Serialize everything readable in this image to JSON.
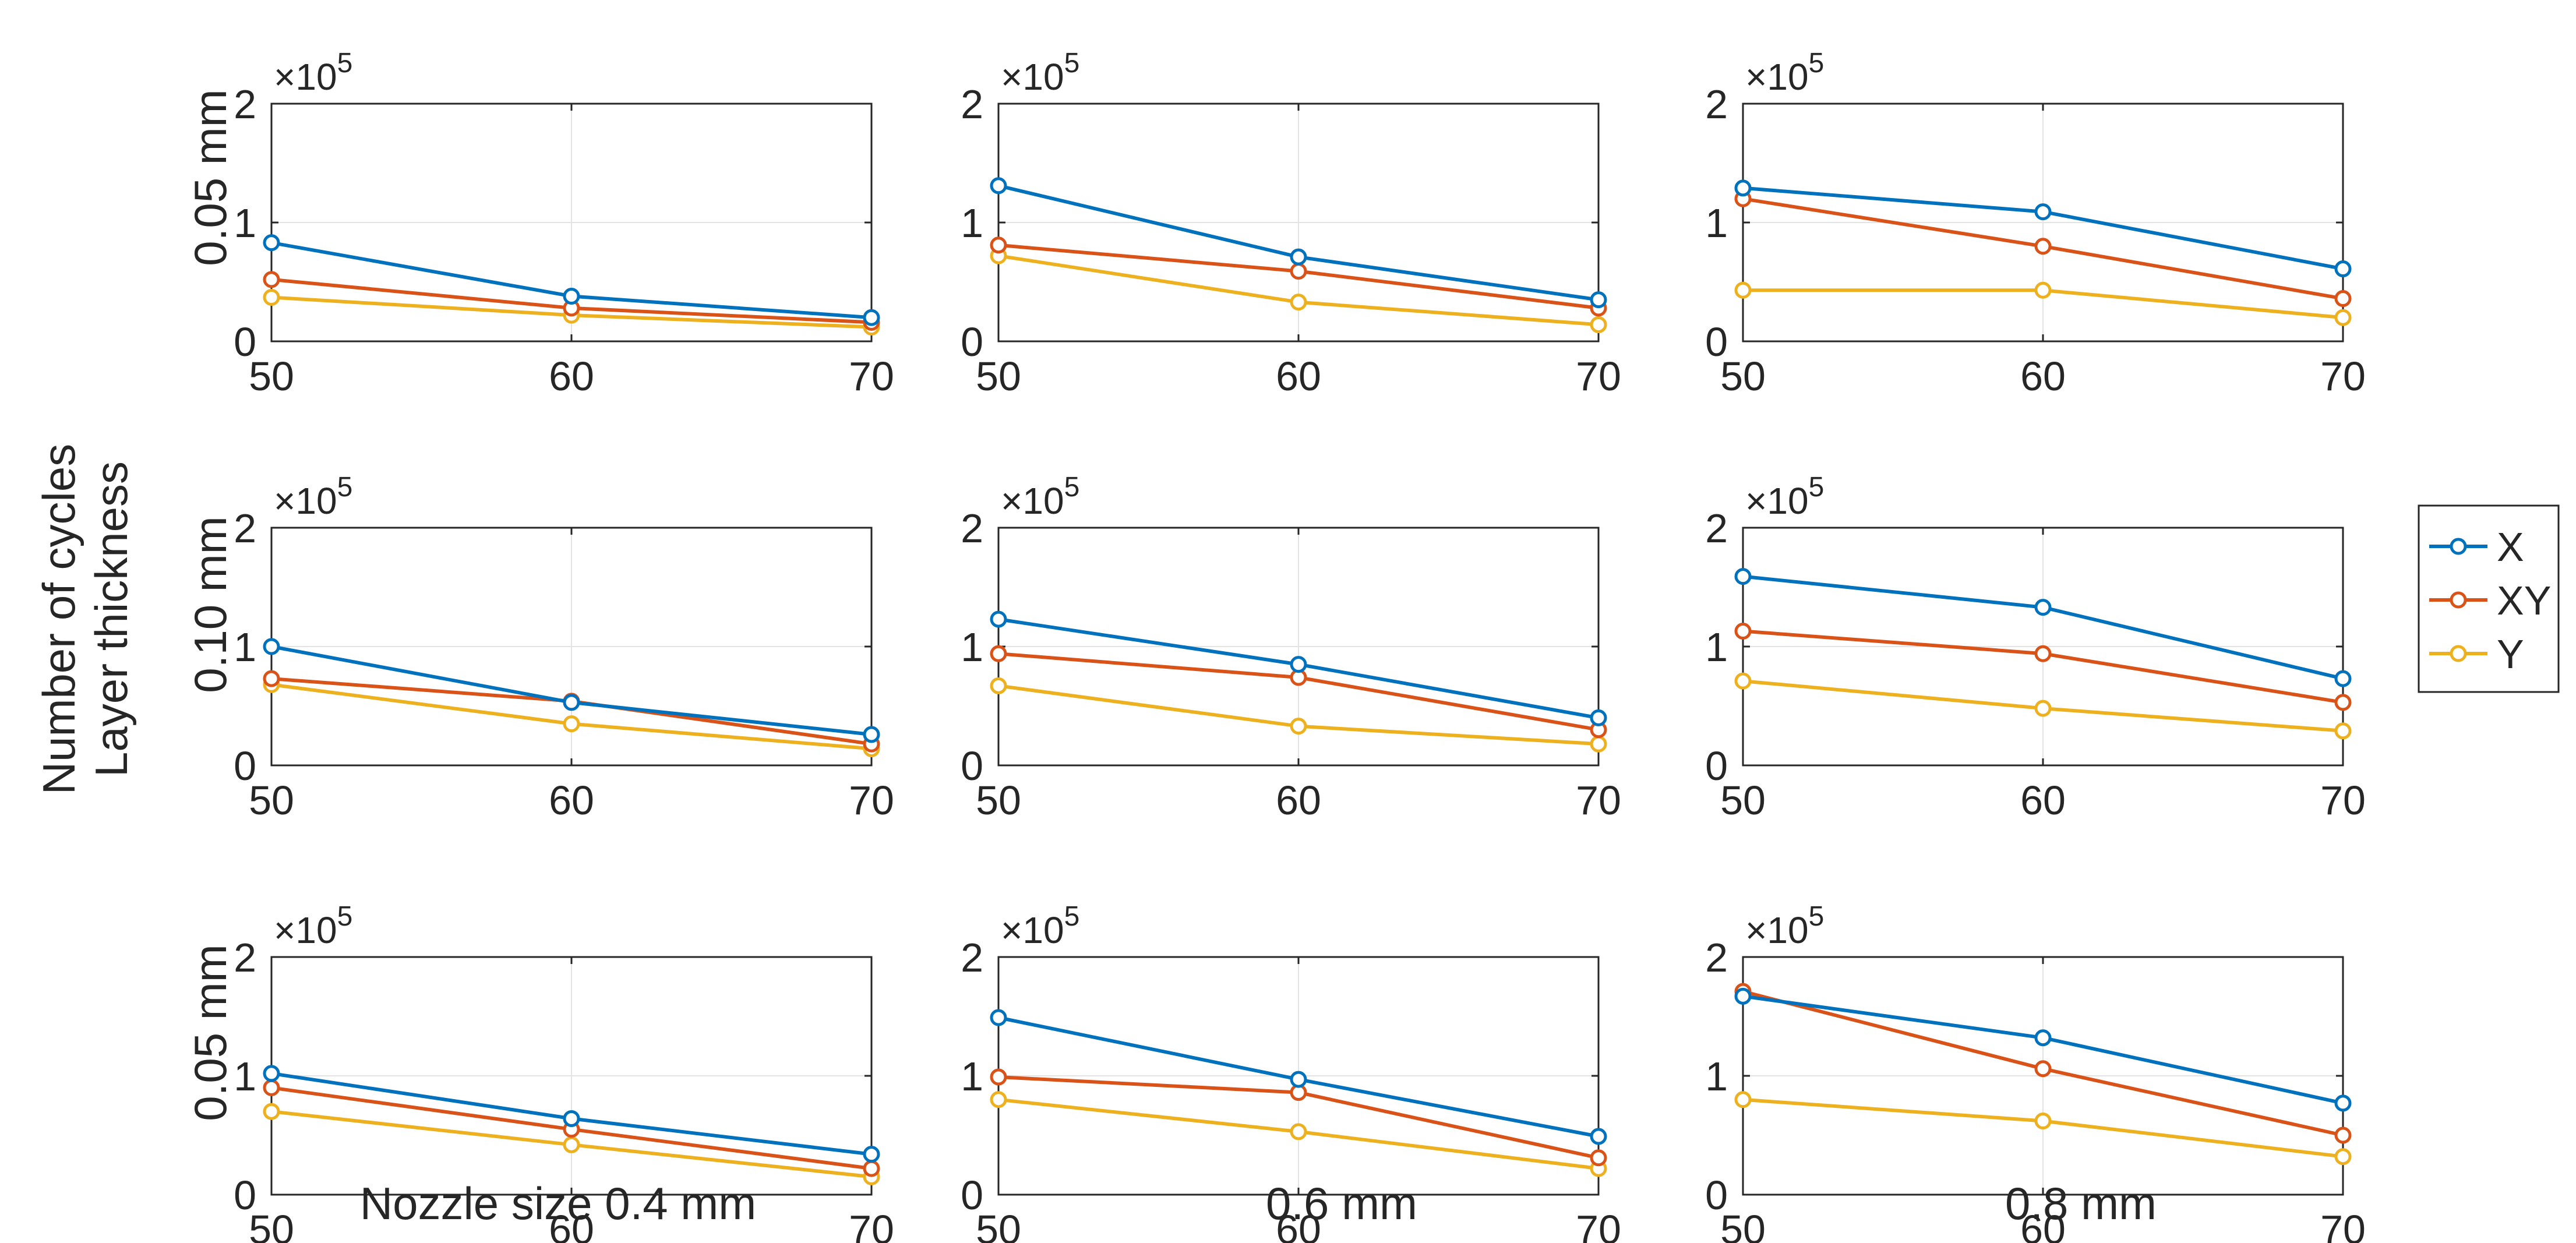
{
  "figure": {
    "ylabel_line1": "Number of cycles",
    "ylabel_line2": "Layer thickness",
    "row_labels": [
      "0.05 mm",
      "0.10 mm",
      "0.05 mm"
    ],
    "col_labels": [
      "Nozzle size 0.4 mm",
      "0.6 mm",
      "0.8 mm"
    ],
    "exponent_base": "×10",
    "exponent_power": "5",
    "legend": [
      {
        "name": "X",
        "color": "#0072BD"
      },
      {
        "name": "XY",
        "color": "#D95319"
      },
      {
        "name": "Y",
        "color": "#EDB120"
      }
    ]
  },
  "chart_data": [
    {
      "type": "line",
      "panel": "row1-col1",
      "row_label": "0.05 mm",
      "col_label": "Nozzle size 0.4 mm",
      "x": [
        50,
        60,
        70
      ],
      "xticks": [
        "50",
        "60",
        "70"
      ],
      "yticks": [
        "0",
        "1",
        "2"
      ],
      "xlim": [
        50,
        70
      ],
      "ylim": [
        0,
        2
      ],
      "y_scale": "x10^5",
      "series": [
        {
          "name": "X",
          "values": [
            0.83,
            0.38,
            0.2
          ]
        },
        {
          "name": "XY",
          "values": [
            0.52,
            0.28,
            0.16
          ]
        },
        {
          "name": "Y",
          "values": [
            0.37,
            0.22,
            0.12
          ]
        }
      ]
    },
    {
      "type": "line",
      "panel": "row1-col2",
      "row_label": "0.05 mm",
      "col_label": "0.6 mm",
      "x": [
        50,
        60,
        70
      ],
      "xticks": [
        "50",
        "60",
        "70"
      ],
      "yticks": [
        "0",
        "1",
        "2"
      ],
      "xlim": [
        50,
        70
      ],
      "ylim": [
        0,
        2
      ],
      "y_scale": "x10^5",
      "series": [
        {
          "name": "X",
          "values": [
            1.31,
            0.71,
            0.35
          ]
        },
        {
          "name": "XY",
          "values": [
            0.81,
            0.59,
            0.28
          ]
        },
        {
          "name": "Y",
          "values": [
            0.72,
            0.33,
            0.14
          ]
        }
      ]
    },
    {
      "type": "line",
      "panel": "row1-col3",
      "row_label": "0.05 mm",
      "col_label": "0.8 mm",
      "x": [
        50,
        60,
        70
      ],
      "xticks": [
        "50",
        "60",
        "70"
      ],
      "yticks": [
        "0",
        "1",
        "2"
      ],
      "xlim": [
        50,
        70
      ],
      "ylim": [
        0,
        2
      ],
      "y_scale": "x10^5",
      "series": [
        {
          "name": "X",
          "values": [
            1.29,
            1.09,
            0.61
          ]
        },
        {
          "name": "XY",
          "values": [
            1.2,
            0.8,
            0.36
          ]
        },
        {
          "name": "Y",
          "values": [
            0.43,
            0.43,
            0.2
          ]
        }
      ]
    },
    {
      "type": "line",
      "panel": "row2-col1",
      "row_label": "0.10 mm",
      "col_label": "Nozzle size 0.4 mm",
      "x": [
        50,
        60,
        70
      ],
      "xticks": [
        "50",
        "60",
        "70"
      ],
      "yticks": [
        "0",
        "1",
        "2"
      ],
      "xlim": [
        50,
        70
      ],
      "ylim": [
        0,
        2
      ],
      "y_scale": "x10^5",
      "series": [
        {
          "name": "X",
          "values": [
            1.0,
            0.53,
            0.26
          ]
        },
        {
          "name": "XY",
          "values": [
            0.73,
            0.54,
            0.18
          ]
        },
        {
          "name": "Y",
          "values": [
            0.68,
            0.35,
            0.14
          ]
        }
      ]
    },
    {
      "type": "line",
      "panel": "row2-col2",
      "row_label": "0.10 mm",
      "col_label": "0.6 mm",
      "x": [
        50,
        60,
        70
      ],
      "xticks": [
        "50",
        "60",
        "70"
      ],
      "yticks": [
        "0",
        "1",
        "2"
      ],
      "xlim": [
        50,
        70
      ],
      "ylim": [
        0,
        2
      ],
      "y_scale": "x10^5",
      "series": [
        {
          "name": "X",
          "values": [
            1.23,
            0.85,
            0.4
          ]
        },
        {
          "name": "XY",
          "values": [
            0.94,
            0.74,
            0.3
          ]
        },
        {
          "name": "Y",
          "values": [
            0.67,
            0.33,
            0.18
          ]
        }
      ]
    },
    {
      "type": "line",
      "panel": "row2-col3",
      "row_label": "0.10 mm",
      "col_label": "0.8 mm",
      "x": [
        50,
        60,
        70
      ],
      "xticks": [
        "50",
        "60",
        "70"
      ],
      "yticks": [
        "0",
        "1",
        "2"
      ],
      "xlim": [
        50,
        70
      ],
      "ylim": [
        0,
        2
      ],
      "y_scale": "x10^5",
      "series": [
        {
          "name": "X",
          "values": [
            1.59,
            1.33,
            0.73
          ]
        },
        {
          "name": "XY",
          "values": [
            1.13,
            0.94,
            0.53
          ]
        },
        {
          "name": "Y",
          "values": [
            0.71,
            0.48,
            0.29
          ]
        }
      ]
    },
    {
      "type": "line",
      "panel": "row3-col1",
      "row_label": "0.05 mm",
      "col_label": "Nozzle size 0.4 mm",
      "x": [
        50,
        60,
        70
      ],
      "xticks": [
        "50",
        "60",
        "70"
      ],
      "yticks": [
        "0",
        "1",
        "2"
      ],
      "xlim": [
        50,
        70
      ],
      "ylim": [
        0,
        2
      ],
      "y_scale": "x10^5",
      "series": [
        {
          "name": "X",
          "values": [
            1.02,
            0.64,
            0.34
          ]
        },
        {
          "name": "XY",
          "values": [
            0.9,
            0.55,
            0.22
          ]
        },
        {
          "name": "Y",
          "values": [
            0.7,
            0.42,
            0.15
          ]
        }
      ]
    },
    {
      "type": "line",
      "panel": "row3-col2",
      "row_label": "0.05 mm",
      "col_label": "0.6 mm",
      "x": [
        50,
        60,
        70
      ],
      "xticks": [
        "50",
        "60",
        "70"
      ],
      "yticks": [
        "0",
        "1",
        "2"
      ],
      "xlim": [
        50,
        70
      ],
      "ylim": [
        0,
        2
      ],
      "y_scale": "x10^5",
      "series": [
        {
          "name": "X",
          "values": [
            1.49,
            0.97,
            0.49
          ]
        },
        {
          "name": "XY",
          "values": [
            0.99,
            0.86,
            0.31
          ]
        },
        {
          "name": "Y",
          "values": [
            0.8,
            0.53,
            0.22
          ]
        }
      ]
    },
    {
      "type": "line",
      "panel": "row3-col3",
      "row_label": "0.05 mm",
      "col_label": "0.8 mm",
      "x": [
        50,
        60,
        70
      ],
      "xticks": [
        "50",
        "60",
        "70"
      ],
      "yticks": [
        "0",
        "1",
        "2"
      ],
      "xlim": [
        50,
        70
      ],
      "ylim": [
        0,
        2
      ],
      "y_scale": "x10^5",
      "series": [
        {
          "name": "X",
          "values": [
            1.67,
            1.32,
            0.77
          ]
        },
        {
          "name": "XY",
          "values": [
            1.71,
            1.06,
            0.5
          ]
        },
        {
          "name": "Y",
          "values": [
            0.8,
            0.62,
            0.32
          ]
        }
      ]
    }
  ]
}
